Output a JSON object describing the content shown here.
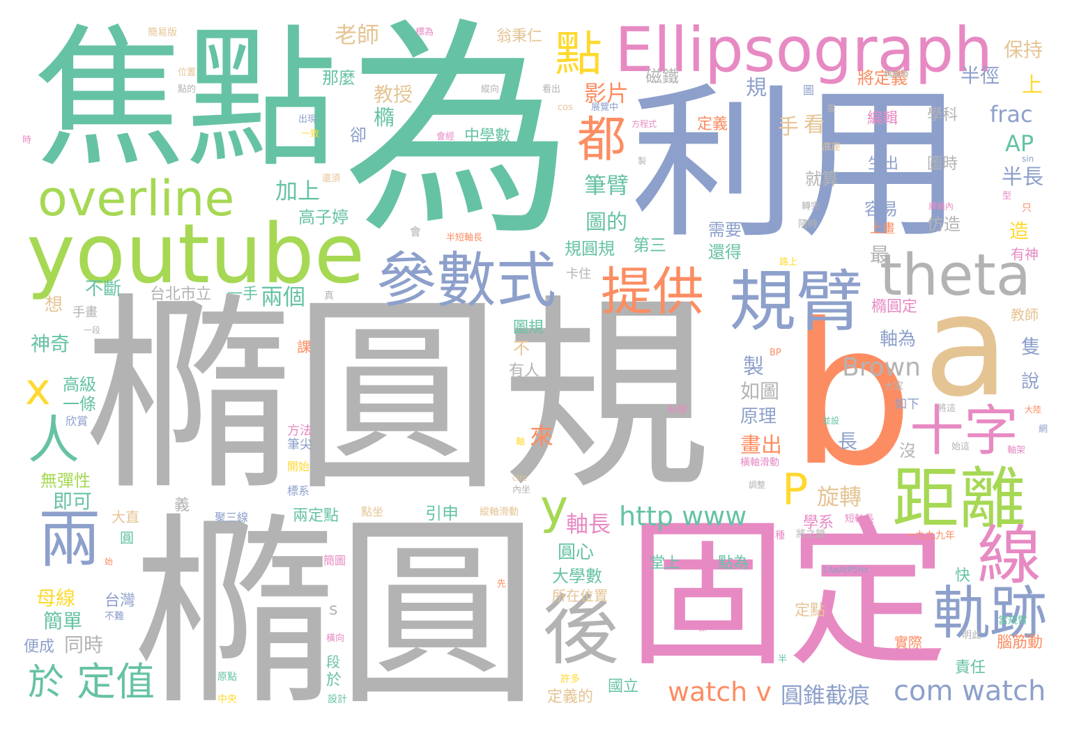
{
  "palette": {
    "gray": "#b3b3b3",
    "green": "#66c2a5",
    "orange": "#fc8d62",
    "blue": "#8da0cb",
    "pink": "#e78ac3",
    "lime": "#a6d854",
    "yellow": "#ffd92f",
    "tan": "#e5c494"
  },
  "words": [
    {
      "text": "橢圓規",
      "color": "gray"
    },
    {
      "text": "橢圓",
      "color": "gray"
    },
    {
      "text": "為",
      "color": "green"
    },
    {
      "text": "焦點",
      "color": "green"
    },
    {
      "text": "利用",
      "color": "blue"
    },
    {
      "text": "b",
      "color": "orange"
    },
    {
      "text": "a",
      "color": "tan"
    },
    {
      "text": "固定",
      "color": "pink"
    },
    {
      "text": "youtube",
      "color": "lime"
    },
    {
      "text": "Ellipsograph",
      "color": "pink"
    },
    {
      "text": "overline",
      "color": "lime"
    },
    {
      "text": "參數式",
      "color": "blue"
    },
    {
      "text": "theta",
      "color": "gray"
    },
    {
      "text": "規臂",
      "color": "blue"
    },
    {
      "text": "距離",
      "color": "lime"
    },
    {
      "text": "十字",
      "color": "pink"
    },
    {
      "text": "軌跡",
      "color": "blue"
    },
    {
      "text": "線",
      "color": "pink"
    },
    {
      "text": "後",
      "color": "gray"
    },
    {
      "text": "提供",
      "color": "orange"
    },
    {
      "text": "點",
      "color": "yellow"
    },
    {
      "text": "都",
      "color": "orange"
    },
    {
      "text": "兩",
      "color": "blue"
    },
    {
      "text": "人",
      "color": "green"
    },
    {
      "text": "x",
      "color": "yellow"
    },
    {
      "text": "y",
      "color": "lime"
    },
    {
      "text": "P",
      "color": "yellow"
    },
    {
      "text": "於",
      "color": "green"
    },
    {
      "text": "定值",
      "color": "green"
    },
    {
      "text": "watch v",
      "color": "orange"
    },
    {
      "text": "com watch",
      "color": "blue"
    },
    {
      "text": "http www",
      "color": "green"
    },
    {
      "text": "圓錐截痕",
      "color": "blue"
    },
    {
      "text": "Brown",
      "color": "gray"
    },
    {
      "text": "frac",
      "color": "blue"
    },
    {
      "text": "AP",
      "color": "green"
    },
    {
      "text": "軸長",
      "color": "pink"
    },
    {
      "text": "旋轉",
      "color": "tan"
    },
    {
      "text": "畫出",
      "color": "orange"
    },
    {
      "text": "影片",
      "color": "orange"
    },
    {
      "text": "筆臂",
      "color": "green"
    },
    {
      "text": "圖的",
      "color": "green"
    },
    {
      "text": "規圓規",
      "color": "green"
    },
    {
      "text": "老師",
      "color": "tan"
    },
    {
      "text": "教授",
      "color": "tan"
    },
    {
      "text": "中學數",
      "color": "green"
    },
    {
      "text": "加上",
      "color": "green"
    },
    {
      "text": "高子婷",
      "color": "green"
    },
    {
      "text": "兩個",
      "color": "green"
    },
    {
      "text": "台北市立",
      "color": "gray"
    },
    {
      "text": "一手",
      "color": "green"
    },
    {
      "text": "不斷",
      "color": "green"
    },
    {
      "text": "神奇",
      "color": "green"
    },
    {
      "text": "高級",
      "color": "green"
    },
    {
      "text": "一條",
      "color": "green"
    },
    {
      "text": "無彈性",
      "color": "lime"
    },
    {
      "text": "即可",
      "color": "green"
    },
    {
      "text": "母線",
      "color": "yellow"
    },
    {
      "text": "簡單",
      "color": "green"
    },
    {
      "text": "同時",
      "color": "gray"
    },
    {
      "text": "便成",
      "color": "blue"
    },
    {
      "text": "台灣",
      "color": "blue"
    },
    {
      "text": "大學數",
      "color": "green"
    },
    {
      "text": "所在位置",
      "color": "tan"
    },
    {
      "text": "圓心",
      "color": "green"
    },
    {
      "text": "引申",
      "color": "green"
    },
    {
      "text": "兩定點",
      "color": "green"
    },
    {
      "text": "如圖",
      "color": "gray"
    },
    {
      "text": "原理",
      "color": "blue"
    },
    {
      "text": "保持",
      "color": "tan"
    },
    {
      "text": "將定義",
      "color": "orange"
    },
    {
      "text": "半徑",
      "color": "blue"
    },
    {
      "text": "編輯",
      "color": "pink"
    },
    {
      "text": "學科",
      "color": "gray"
    },
    {
      "text": "生出",
      "color": "blue"
    },
    {
      "text": "圖時",
      "color": "gray"
    },
    {
      "text": "就算",
      "color": "gray"
    },
    {
      "text": "半長",
      "color": "blue"
    },
    {
      "text": "容易",
      "color": "blue"
    },
    {
      "text": "需要",
      "color": "blue"
    },
    {
      "text": "仿造",
      "color": "gray"
    },
    {
      "text": "還得",
      "color": "green"
    },
    {
      "text": "橢圓定",
      "color": "pink"
    },
    {
      "text": "軸為",
      "color": "blue"
    },
    {
      "text": "隻",
      "color": "blue"
    },
    {
      "text": "說",
      "color": "blue"
    },
    {
      "text": "教師",
      "color": "tan"
    },
    {
      "text": "有神",
      "color": "pink"
    },
    {
      "text": "造",
      "color": "yellow"
    },
    {
      "text": "上",
      "color": "yellow"
    },
    {
      "text": "第三",
      "color": "green"
    },
    {
      "text": "最",
      "color": "gray"
    },
    {
      "text": "定義",
      "color": "orange"
    },
    {
      "text": "圖規",
      "color": "green"
    },
    {
      "text": "有人",
      "color": "gray"
    },
    {
      "text": "不",
      "color": "tan"
    },
    {
      "text": "製",
      "color": "blue"
    },
    {
      "text": "長",
      "color": "blue"
    },
    {
      "text": "來",
      "color": "orange"
    },
    {
      "text": "手",
      "color": "tan"
    },
    {
      "text": "看",
      "color": "tan"
    },
    {
      "text": "規",
      "color": "blue"
    },
    {
      "text": "磁鐵",
      "color": "gray"
    },
    {
      "text": "翁秉仁",
      "color": "tan"
    },
    {
      "text": "那麼",
      "color": "green"
    },
    {
      "text": "橢",
      "color": "green"
    },
    {
      "text": "卻",
      "color": "blue"
    },
    {
      "text": "想",
      "color": "tan"
    },
    {
      "text": "學系",
      "color": "pink"
    },
    {
      "text": "堂上",
      "color": "green"
    },
    {
      "text": "點為",
      "color": "green"
    },
    {
      "text": "定點",
      "color": "tan"
    },
    {
      "text": "實際",
      "color": "orange"
    },
    {
      "text": "責任",
      "color": "green"
    },
    {
      "text": "腦筋動",
      "color": "orange"
    },
    {
      "text": "快",
      "color": "green"
    },
    {
      "text": "國立",
      "color": "green"
    },
    {
      "text": "定義的",
      "color": "tan"
    },
    {
      "text": "s",
      "color": "gray"
    },
    {
      "text": "於",
      "color": "green"
    },
    {
      "text": "段",
      "color": "green"
    },
    {
      "text": "沒",
      "color": "gray"
    },
    {
      "text": "1AeAtP5Hz",
      "color": "blue"
    },
    {
      "text": "上畫",
      "color": "orange"
    },
    {
      "text": "如下",
      "color": "blue"
    },
    {
      "text": "大直",
      "color": "tan"
    },
    {
      "text": "聚三線",
      "color": "blue"
    },
    {
      "text": "義",
      "color": "gray"
    },
    {
      "text": "手畫",
      "color": "gray"
    },
    {
      "text": "欣賞",
      "color": "blue"
    },
    {
      "text": "課",
      "color": "orange"
    },
    {
      "text": "圓",
      "color": "green"
    },
    {
      "text": "方法",
      "color": "pink"
    },
    {
      "text": "筆尖",
      "color": "blue"
    },
    {
      "text": "開始",
      "color": "yellow"
    },
    {
      "text": "標系",
      "color": "blue"
    },
    {
      "text": "點坐",
      "color": "tan"
    },
    {
      "text": "簡圖",
      "color": "pink"
    },
    {
      "text": "橫軸滑動",
      "color": "pink"
    },
    {
      "text": "縱軸滑動",
      "color": "tan"
    },
    {
      "text": "一九九九年",
      "color": "orange"
    },
    {
      "text": "短軸長",
      "color": "pink"
    },
    {
      "text": "將之鎖",
      "color": "gray"
    },
    {
      "text": "當規臂",
      "color": "green"
    },
    {
      "text": "明此",
      "color": "gray"
    },
    {
      "text": "中央",
      "color": "yellow"
    },
    {
      "text": "設計",
      "color": "green"
    },
    {
      "text": "原點",
      "color": "green"
    },
    {
      "text": "許多",
      "color": "yellow"
    },
    {
      "text": "大家",
      "color": "gray"
    },
    {
      "text": "科學",
      "color": "pink"
    },
    {
      "text": "簡易版",
      "color": "tan"
    },
    {
      "text": "標為",
      "color": "pink"
    },
    {
      "text": "位置",
      "color": "tan"
    },
    {
      "text": "點的",
      "color": "gray"
    },
    {
      "text": "縱向",
      "color": "gray"
    },
    {
      "text": "看出",
      "color": "gray"
    },
    {
      "text": "cos",
      "color": "tan"
    },
    {
      "text": "展覽中",
      "color": "blue"
    },
    {
      "text": "方程式",
      "color": "pink"
    },
    {
      "text": "出現",
      "color": "blue"
    },
    {
      "text": "一致",
      "color": "yellow"
    },
    {
      "text": "會經",
      "color": "pink"
    },
    {
      "text": "還須",
      "color": "tan"
    },
    {
      "text": "卡住",
      "color": "gray"
    },
    {
      "text": "半短軸長",
      "color": "orange"
    },
    {
      "text": "會",
      "color": "gray"
    },
    {
      "text": "路上",
      "color": "yellow"
    },
    {
      "text": "轉完",
      "color": "gray"
    },
    {
      "text": "廣義內",
      "color": "pink"
    },
    {
      "text": "隨時",
      "color": "gray"
    },
    {
      "text": "型",
      "color": "pink"
    },
    {
      "text": "只",
      "color": "orange"
    },
    {
      "text": "sin",
      "color": "blue"
    },
    {
      "text": "底座",
      "color": "tan"
    },
    {
      "text": "畫",
      "color": "gray"
    },
    {
      "text": "橢圓時",
      "color": "gray"
    },
    {
      "text": "圖",
      "color": "blue"
    },
    {
      "text": "時",
      "color": "pink"
    },
    {
      "text": "製",
      "color": "gray"
    },
    {
      "text": "一段",
      "color": "gray"
    },
    {
      "text": "不難",
      "color": "blue"
    },
    {
      "text": "先",
      "color": "orange"
    },
    {
      "text": "橫向",
      "color": "pink"
    },
    {
      "text": "始",
      "color": "orange"
    },
    {
      "text": "內坐",
      "color": "gray"
    },
    {
      "text": "circ",
      "color": "tan"
    },
    {
      "text": "調整",
      "color": "gray"
    },
    {
      "text": "種",
      "color": "pink"
    },
    {
      "text": "始這",
      "color": "gray"
    },
    {
      "text": "軸架",
      "color": "pink"
    },
    {
      "text": "並設",
      "color": "green"
    },
    {
      "text": "將這",
      "color": "gray"
    },
    {
      "text": "大陸",
      "color": "orange"
    },
    {
      "text": "網",
      "color": "blue"
    },
    {
      "text": "BP",
      "color": "orange"
    },
    {
      "text": "顯",
      "color": "pink"
    },
    {
      "text": "半",
      "color": "green"
    },
    {
      "text": "真",
      "color": "gray"
    },
    {
      "text": "軸",
      "color": "yellow"
    }
  ]
}
